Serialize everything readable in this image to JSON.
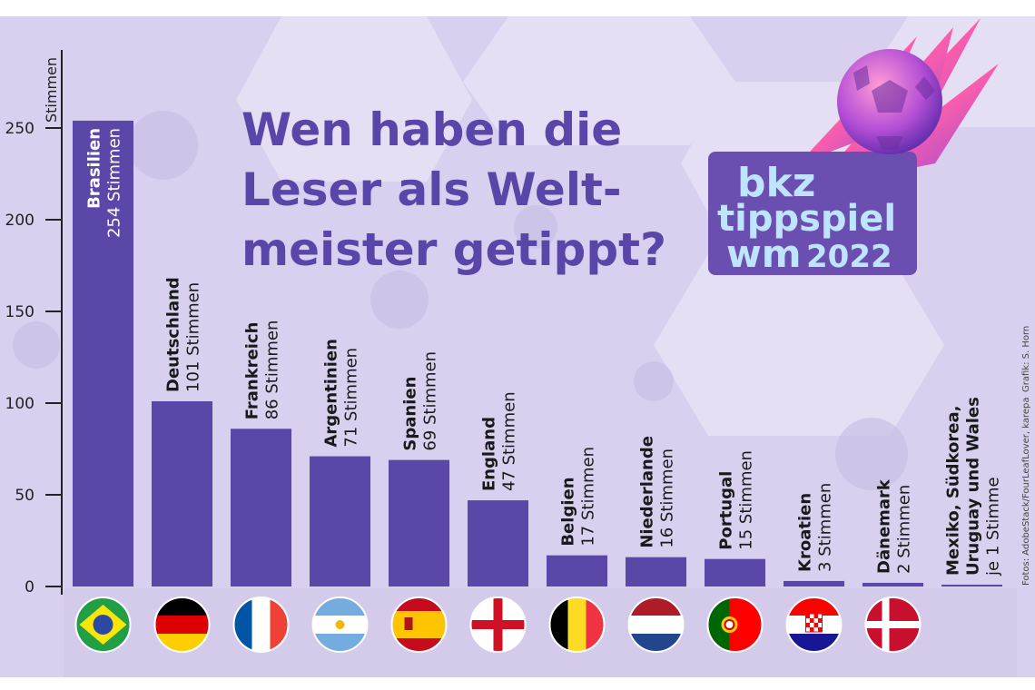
{
  "title_lines": [
    "Wen haben die",
    "Leser als Welt-",
    "meister getippt?"
  ],
  "logo": {
    "line1": "bkz",
    "line2": "tippspiel",
    "line3a": "wm",
    "line3b": "2022"
  },
  "credits": {
    "photos": "Fotos: AdobeStack/FourLeafLover, karepa",
    "graphic": "Grafik: S. Horn"
  },
  "colors": {
    "bar": "#5b47a8",
    "background": "#d8d0ee",
    "title": "#5a45a8",
    "logo_bg": "#6a4fb0"
  },
  "chart_data": {
    "type": "bar",
    "ylabel": "Stimmen",
    "ylim": [
      0,
      270
    ],
    "yticks": [
      0,
      50,
      100,
      150,
      200,
      250
    ],
    "categories": [
      "Brasilien",
      "Deutschland",
      "Frankreich",
      "Argentinien",
      "Spanien",
      "England",
      "Belgien",
      "Niederlande",
      "Portugal",
      "Kroatien",
      "Dänemark",
      "Mexiko, Südkorea, Uruguay und Wales"
    ],
    "values": [
      254,
      101,
      86,
      71,
      69,
      47,
      17,
      16,
      15,
      3,
      2,
      1
    ],
    "value_labels": [
      "254 Stimmen",
      "101 Stimmen",
      "86 Stimmen",
      "71 Stimmen",
      "69 Stimmen",
      "47 Stimmen",
      "17 Stimmen",
      "16 Stimmen",
      "15 Stimmen",
      "3 Stimmen",
      "2 Stimmen",
      "je 1 Stimme"
    ],
    "flags": [
      "flag-brazil-icon",
      "flag-germany-icon",
      "flag-france-icon",
      "flag-argentina-icon",
      "flag-spain-icon",
      "flag-england-icon",
      "flag-belgium-icon",
      "flag-netherlands-icon",
      "flag-portugal-icon",
      "flag-croatia-icon",
      "flag-denmark-icon",
      ""
    ],
    "grid": false,
    "legend": "none"
  }
}
